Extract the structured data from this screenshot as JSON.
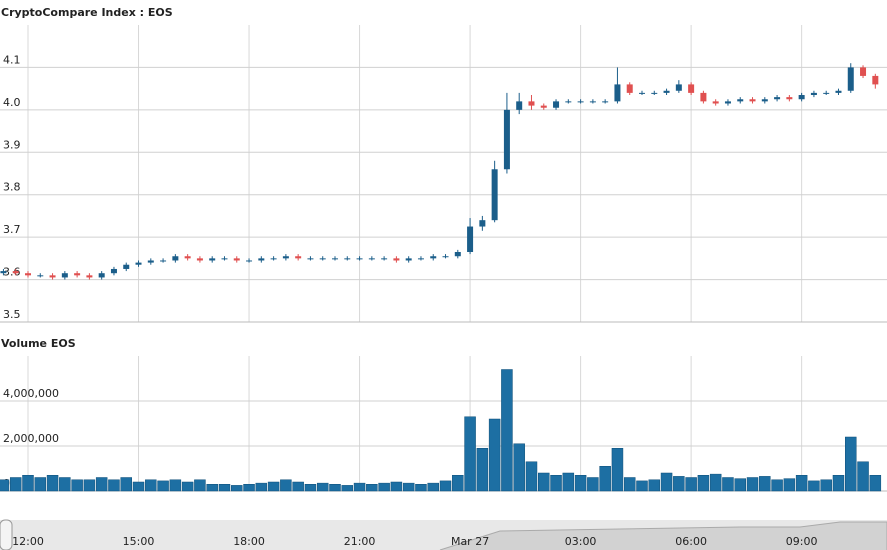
{
  "chart_data": [
    {
      "type": "candlestick",
      "title": "CryptoCompare Index : EOS",
      "categories": [
        null,
        null,
        "12:00",
        null,
        null,
        null,
        null,
        null,
        null,
        null,
        null,
        "15:00",
        null,
        null,
        null,
        null,
        null,
        null,
        null,
        null,
        "18:00",
        null,
        null,
        null,
        null,
        null,
        null,
        null,
        null,
        "21:00",
        null,
        null,
        null,
        null,
        null,
        null,
        null,
        null,
        "Mar 27",
        null,
        null,
        null,
        null,
        null,
        null,
        null,
        null,
        "03:00",
        null,
        null,
        null,
        null,
        null,
        null,
        null,
        null,
        "06:00",
        null,
        null,
        null,
        null,
        null,
        null,
        null,
        null,
        "09:00",
        null,
        null,
        null,
        null,
        null,
        null
      ],
      "open": [
        3.615,
        3.62,
        3.615,
        3.61,
        3.61,
        3.605,
        3.615,
        3.61,
        3.605,
        3.615,
        3.625,
        3.635,
        3.64,
        3.645,
        3.645,
        3.655,
        3.65,
        3.645,
        3.65,
        3.65,
        3.645,
        3.645,
        3.65,
        3.65,
        3.655,
        3.65,
        3.65,
        3.65,
        3.65,
        3.65,
        3.65,
        3.65,
        3.65,
        3.645,
        3.65,
        3.65,
        3.655,
        3.655,
        3.665,
        3.725,
        3.74,
        3.86,
        4.0,
        4.02,
        4.01,
        4.005,
        4.02,
        4.02,
        4.02,
        4.02,
        4.02,
        4.06,
        4.04,
        4.04,
        4.04,
        4.045,
        4.06,
        4.04,
        4.02,
        4.015,
        4.02,
        4.025,
        4.02,
        4.025,
        4.03,
        4.025,
        4.035,
        4.04,
        4.04,
        4.045,
        4.1,
        4.08
      ],
      "high": [
        3.625,
        3.625,
        3.62,
        3.615,
        3.615,
        3.62,
        3.62,
        3.615,
        3.62,
        3.63,
        3.64,
        3.645,
        3.65,
        3.65,
        3.66,
        3.66,
        3.655,
        3.655,
        3.655,
        3.655,
        3.65,
        3.655,
        3.655,
        3.66,
        3.66,
        3.655,
        3.655,
        3.655,
        3.655,
        3.655,
        3.655,
        3.655,
        3.655,
        3.655,
        3.655,
        3.66,
        3.66,
        3.67,
        3.745,
        3.75,
        3.88,
        4.04,
        4.04,
        4.035,
        4.015,
        4.025,
        4.025,
        4.025,
        4.025,
        4.025,
        4.1,
        4.065,
        4.045,
        4.045,
        4.05,
        4.07,
        4.065,
        4.045,
        4.025,
        4.025,
        4.03,
        4.03,
        4.03,
        4.035,
        4.035,
        4.04,
        4.045,
        4.045,
        4.05,
        4.11,
        4.105,
        4.085
      ],
      "low": [
        3.61,
        3.61,
        3.605,
        3.605,
        3.6,
        3.6,
        3.605,
        3.6,
        3.6,
        3.61,
        3.62,
        3.63,
        3.635,
        3.64,
        3.64,
        3.645,
        3.64,
        3.64,
        3.645,
        3.64,
        3.64,
        3.64,
        3.645,
        3.645,
        3.645,
        3.645,
        3.645,
        3.645,
        3.645,
        3.645,
        3.645,
        3.645,
        3.64,
        3.64,
        3.645,
        3.645,
        3.65,
        3.65,
        3.66,
        3.715,
        3.735,
        3.85,
        3.99,
        4.0,
        4.0,
        4.0,
        4.015,
        4.015,
        4.015,
        4.015,
        4.015,
        4.035,
        4.035,
        4.035,
        4.035,
        4.04,
        4.035,
        4.015,
        4.01,
        4.01,
        4.015,
        4.015,
        4.015,
        4.02,
        4.02,
        4.02,
        4.03,
        4.035,
        4.035,
        4.04,
        4.075,
        4.05
      ],
      "close": [
        3.62,
        3.615,
        3.61,
        3.61,
        3.605,
        3.615,
        3.61,
        3.605,
        3.615,
        3.625,
        3.635,
        3.64,
        3.645,
        3.645,
        3.655,
        3.65,
        3.645,
        3.65,
        3.65,
        3.645,
        3.645,
        3.65,
        3.65,
        3.655,
        3.65,
        3.65,
        3.65,
        3.65,
        3.65,
        3.65,
        3.65,
        3.65,
        3.645,
        3.65,
        3.65,
        3.655,
        3.655,
        3.665,
        3.725,
        3.74,
        3.86,
        4.0,
        4.02,
        4.01,
        4.005,
        4.02,
        4.02,
        4.02,
        4.02,
        4.02,
        4.06,
        4.04,
        4.04,
        4.04,
        4.045,
        4.06,
        4.04,
        4.02,
        4.015,
        4.02,
        4.025,
        4.02,
        4.025,
        4.03,
        4.025,
        4.035,
        4.04,
        4.04,
        4.045,
        4.1,
        4.08,
        4.06
      ],
      "up_color": "#1b5e8a",
      "down_color": "#e05050",
      "ylim": [
        3.5,
        4.2
      ],
      "yticks": [
        3.5,
        3.6,
        3.7,
        3.8,
        3.9,
        {
          "value": 4,
          "label": "4.0"
        },
        4.1
      ],
      "grid": true
    },
    {
      "type": "bar",
      "title": "Volume EOS",
      "values": [
        500000,
        600000,
        700000,
        600000,
        700000,
        600000,
        500000,
        500000,
        600000,
        500000,
        600000,
        400000,
        500000,
        450000,
        500000,
        400000,
        500000,
        300000,
        300000,
        250000,
        300000,
        350000,
        400000,
        500000,
        400000,
        300000,
        350000,
        300000,
        250000,
        350000,
        300000,
        350000,
        400000,
        350000,
        300000,
        350000,
        450000,
        700000,
        3300000,
        1900000,
        3200000,
        5400000,
        2100000,
        1300000,
        800000,
        700000,
        800000,
        700000,
        600000,
        1100000,
        1900000,
        600000,
        450000,
        500000,
        800000,
        650000,
        600000,
        700000,
        750000,
        600000,
        550000,
        600000,
        650000,
        500000,
        550000,
        700000,
        450000,
        500000,
        700000,
        2400000,
        1300000,
        700000
      ],
      "color": "#1d6fa3",
      "ylim": [
        0,
        6000000
      ],
      "yticks": [
        0,
        {
          "value": 2000000,
          "label": "2,000,000"
        },
        {
          "value": 4000000,
          "label": "4,000,000"
        }
      ],
      "grid": true
    }
  ]
}
